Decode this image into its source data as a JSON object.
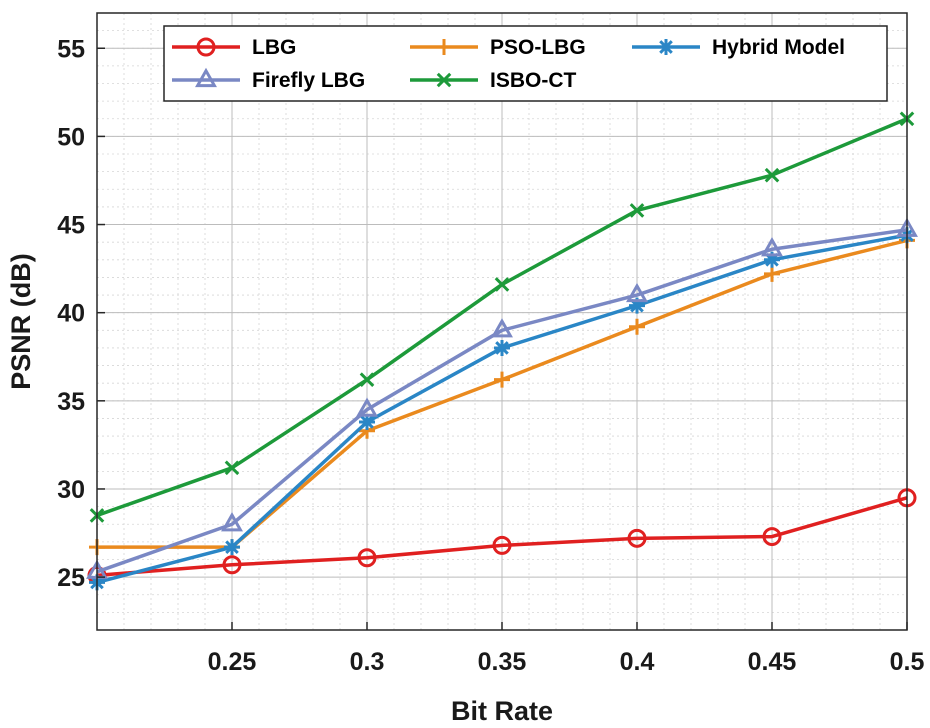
{
  "chart_data": {
    "type": "line",
    "title": "",
    "xlabel": "Bit Rate",
    "ylabel": "PSNR (dB)",
    "xlim": [
      0.2,
      0.5
    ],
    "ylim": [
      22,
      57
    ],
    "x": [
      0.2,
      0.25,
      0.3,
      0.35,
      0.4,
      0.45,
      0.5
    ],
    "xticks": [
      0.25,
      0.3,
      0.35,
      0.4,
      0.45,
      0.5
    ],
    "xtick_labels": [
      "0.25",
      "0.3",
      "0.35",
      "0.4",
      "0.45",
      "0.5"
    ],
    "yticks": [
      25,
      30,
      35,
      40,
      45,
      50,
      55
    ],
    "ytick_labels": [
      "25",
      "30",
      "35",
      "40",
      "45",
      "50",
      "55"
    ],
    "grid": "major-and-minor",
    "legend_position": "top",
    "series": [
      {
        "name": "LBG",
        "color": "#e02020",
        "marker": "circle",
        "values": [
          25.1,
          25.7,
          26.1,
          26.8,
          27.2,
          27.3,
          29.5
        ]
      },
      {
        "name": "PSO-LBG",
        "color": "#ea8a1e",
        "marker": "plus",
        "values": [
          26.7,
          26.7,
          33.3,
          36.2,
          39.2,
          42.2,
          44.1
        ]
      },
      {
        "name": "Hybrid Model",
        "color": "#2a86c6",
        "marker": "asterisk",
        "values": [
          24.7,
          26.7,
          33.8,
          38.0,
          40.4,
          43.0,
          44.4
        ]
      },
      {
        "name": "Firefly LBG",
        "color": "#7a88c4",
        "marker": "triangle",
        "values": [
          25.3,
          28.0,
          34.5,
          39.0,
          41.0,
          43.6,
          44.7
        ]
      },
      {
        "name": "ISBO-CT",
        "color": "#1d9a3a",
        "marker": "x",
        "values": [
          28.5,
          31.2,
          36.2,
          41.6,
          45.8,
          47.8,
          51.0
        ]
      }
    ]
  }
}
